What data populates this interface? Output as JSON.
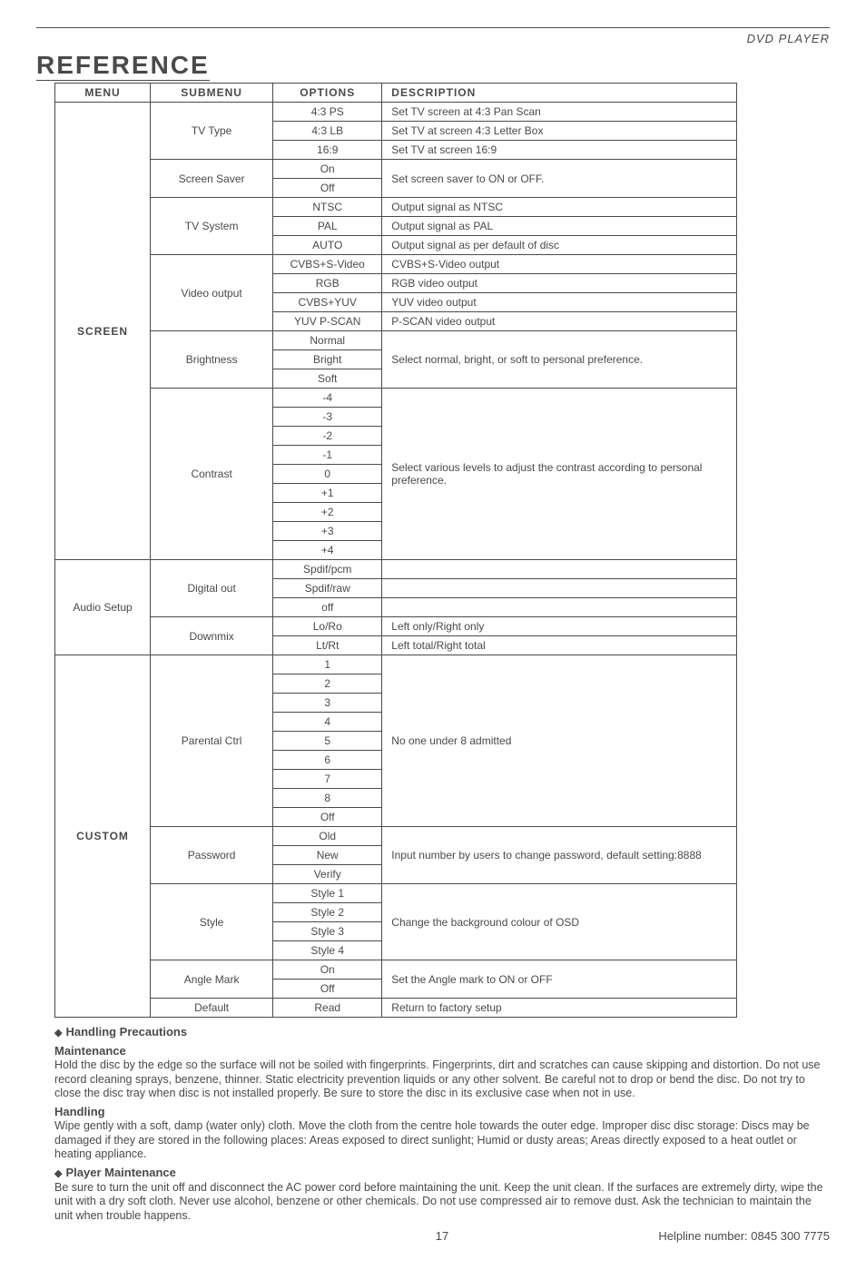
{
  "header": {
    "product": "DVD PLAYER"
  },
  "title": "REFERENCE",
  "table": {
    "headers": {
      "menu": "MENU",
      "submenu": "SUBMENU",
      "options": "OPTIONS",
      "description": "DESCRIPTION"
    },
    "screen": {
      "menu": "SCREEN",
      "tvtype": {
        "label": "TV Type",
        "opts": [
          "4:3 PS",
          "4:3 LB",
          "16:9"
        ],
        "descs": [
          "Set TV screen at 4:3 Pan Scan",
          "Set TV at screen 4:3 Letter Box",
          "Set TV at screen 16:9"
        ]
      },
      "screensaver": {
        "label": "Screen Saver",
        "opts": [
          "On",
          "Off"
        ],
        "desc": "Set screen saver to ON or OFF."
      },
      "tvsystem": {
        "label": "TV System",
        "opts": [
          "NTSC",
          "PAL",
          "AUTO"
        ],
        "descs": [
          "Output signal as NTSC",
          "Output signal as PAL",
          "Output signal as per default of disc"
        ]
      },
      "videoout": {
        "label": "Video output",
        "opts": [
          "CVBS+S-Video",
          "RGB",
          "CVBS+YUV",
          "YUV P-SCAN"
        ],
        "descs": [
          "CVBS+S-Video output",
          "RGB video output",
          "YUV video output",
          "P-SCAN video output"
        ]
      },
      "brightness": {
        "label": "Brightness",
        "opts": [
          "Normal",
          "Bright",
          "Soft"
        ],
        "desc": "Select normal, bright, or soft to personal preference."
      },
      "contrast": {
        "label": "Contrast",
        "opts": [
          "-4",
          "-3",
          "-2",
          "-1",
          "0",
          "+1",
          "+2",
          "+3",
          "+4"
        ],
        "desc": "Select various levels to adjust the contrast according to personal preference."
      }
    },
    "audio": {
      "menu": "Audio Setup",
      "digitalout": {
        "label": "Digital out",
        "opts": [
          "Spdif/pcm",
          "Spdif/raw",
          "off"
        ],
        "descs": [
          "",
          "",
          ""
        ]
      },
      "downmix": {
        "label": "Downmix",
        "opts": [
          "Lo/Ro",
          "Lt/Rt"
        ],
        "descs": [
          "Left only/Right only",
          "Left total/Right total"
        ]
      }
    },
    "custom": {
      "menu": "CUSTOM",
      "parental": {
        "label": "Parental Ctrl",
        "opts": [
          "1",
          "2",
          "3",
          "4",
          "5",
          "6",
          "7",
          "8",
          "Off"
        ],
        "desc": "No one under 8 admitted"
      },
      "password": {
        "label": "Password",
        "opts": [
          "Old",
          "New",
          "Verify"
        ],
        "desc": "Input number by users to change password, default setting:8888"
      },
      "style": {
        "label": "Style",
        "opts": [
          "Style 1",
          "Style 2",
          "Style 3",
          "Style 4"
        ],
        "desc": "Change the background colour of OSD"
      },
      "anglemark": {
        "label": "Angle Mark",
        "opts": [
          "On",
          "Off"
        ],
        "desc": "Set the Angle mark to ON or OFF"
      },
      "default": {
        "label": "Default",
        "opt": "Read",
        "desc": "Return to factory setup"
      }
    }
  },
  "sections": {
    "handling_precautions": {
      "title": "Handling Precautions"
    },
    "maintenance": {
      "title": "Maintenance",
      "body": "Hold the disc by the edge so the surface will not be soiled with fingerprints. Fingerprints, dirt and scratches can cause skipping and distortion. Do not use record cleaning sprays, benzene, thinner. Static electricity prevention liquids or any other solvent. Be careful not to drop or bend the disc. Do not try to close the disc tray when disc is not installed properly. Be sure to store the disc in its exclusive case when not in use."
    },
    "handling": {
      "title": "Handling",
      "body": "Wipe gently with a soft, damp (water only) cloth. Move the cloth from the centre hole towards the outer edge. Improper disc disc storage: Discs may be damaged if they are stored in the following places: Areas exposed to direct sunlight; Humid or dusty areas; Areas directly exposed to a heat outlet or heating appliance."
    },
    "player_maintenance": {
      "title": "Player Maintenance",
      "body": "Be sure to turn the unit off and disconnect the AC power cord before maintaining the unit. Keep the unit clean. If the surfaces are extremely dirty, wipe the unit with a dry soft cloth. Never use alcohol, benzene or other chemicals. Do not use compressed air to remove dust. Ask the technician to maintain the unit when trouble happens."
    }
  },
  "footer": {
    "page": "17",
    "helpline": "Helpline number: 0845 300 7775"
  }
}
